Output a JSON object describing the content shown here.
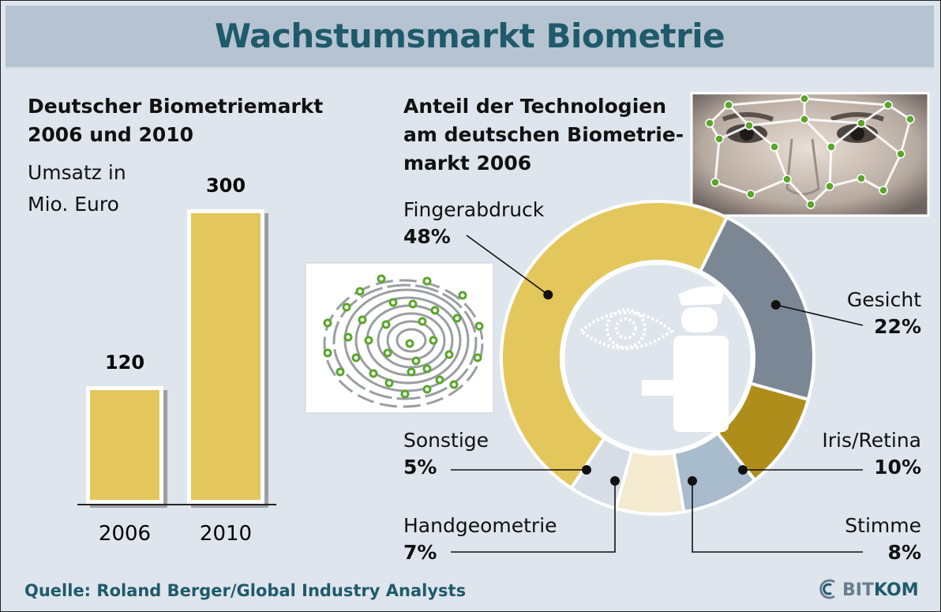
{
  "title": "Wachstumsmarkt Biometrie",
  "left_chart": {
    "subtitle_line1": "Deutscher Biometriemarkt",
    "subtitle_line2": "2006 und 2010",
    "unit_line1": "Umsatz in",
    "unit_line2": "Mio. Euro"
  },
  "right_chart": {
    "subtitle_line1": "Anteil der Technologien",
    "subtitle_line2": "am deutschen Biometrie-",
    "subtitle_line3": "markt 2006"
  },
  "source": "Quelle: Roland Berger/Global Industry Analysts",
  "logo": {
    "prefix": "BIT",
    "suffix": "KOM"
  },
  "colors": {
    "title": "#1f5a6b",
    "bar": "#e4c75c",
    "fingerabdruck": "#e4c75c",
    "gesicht": "#7c8796",
    "iris": "#ae8d1b",
    "stimme": "#a9bccd",
    "handgeometrie": "#f3ead0",
    "sonstige": "#d6dde6"
  },
  "chart_data": [
    {
      "type": "bar",
      "title": "Deutscher Biometriemarkt 2006 und 2010",
      "ylabel": "Umsatz in Mio. Euro",
      "categories": [
        "2006",
        "2010"
      ],
      "values": [
        120,
        300
      ],
      "data_labels": [
        "120",
        "300"
      ]
    },
    {
      "type": "pie",
      "variant": "donut",
      "title": "Anteil der Technologien am deutschen Biometriemarkt 2006",
      "slices": [
        {
          "name": "Fingerabdruck",
          "value": 48,
          "label": "48%"
        },
        {
          "name": "Gesicht",
          "value": 22,
          "label": "22%"
        },
        {
          "name": "Iris/Retina",
          "value": 10,
          "label": "10%"
        },
        {
          "name": "Stimme",
          "value": 8,
          "label": "8%"
        },
        {
          "name": "Handgeometrie",
          "value": 7,
          "label": "7%"
        },
        {
          "name": "Sonstige",
          "value": 5,
          "label": "5%"
        }
      ]
    }
  ],
  "icons": [
    "face-photo-icon",
    "fingerprint-icon",
    "eye-icon",
    "officer-icon",
    "bitkom-logo-icon"
  ]
}
